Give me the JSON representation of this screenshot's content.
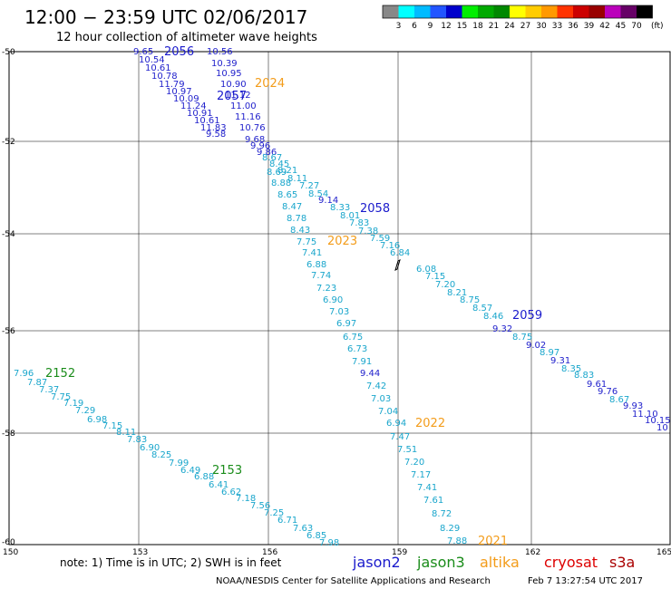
{
  "header": {
    "title": "12:00 − 23:59 UTC 02/06/2017",
    "subtitle": "12 hour collection of altimeter wave heights"
  },
  "color_scale": {
    "unit": "(ft)",
    "ticks": [
      "3",
      "6",
      "9",
      "12",
      "15",
      "18",
      "21",
      "24",
      "27",
      "30",
      "33",
      "36",
      "39",
      "42",
      "45",
      "70"
    ],
    "colors": [
      "#888888",
      "#00ffff",
      "#00bbff",
      "#2255ff",
      "#0000cc",
      "#00ee00",
      "#00aa00",
      "#008800",
      "#ffff00",
      "#ffcc00",
      "#ff9900",
      "#ff3300",
      "#cc0000",
      "#990000",
      "#bb00bb",
      "#660066",
      "#000000"
    ]
  },
  "axes": {
    "lon_ticks": [
      "150",
      "153",
      "156",
      "159",
      "162",
      "165"
    ],
    "lat_ticks": [
      "-50",
      "-52",
      "-54",
      "-56",
      "-58",
      "-60"
    ]
  },
  "passes": [
    {
      "id": "2056",
      "color": "#1a1acc"
    },
    {
      "id": "2057",
      "color": "#1a1acc"
    },
    {
      "id": "2058",
      "color": "#1a1acc"
    },
    {
      "id": "2059",
      "color": "#1a1acc"
    },
    {
      "id": "2024",
      "color": "#f39c1a"
    },
    {
      "id": "2023",
      "color": "#f39c1a"
    },
    {
      "id": "2022",
      "color": "#f39c1a"
    },
    {
      "id": "2021",
      "color": "#f39c1a"
    },
    {
      "id": "2152",
      "color": "#1a8c1a"
    },
    {
      "id": "2153",
      "color": "#1a8c1a"
    }
  ],
  "wave_labels": [
    "9.65",
    "10.54",
    "10.61",
    "10.78",
    "11.79",
    "10.97",
    "10.09",
    "11.24",
    "10.91",
    "10.61",
    "11.83",
    "9.58",
    "10.56",
    "10.39",
    "10.95",
    "10.90",
    "11.12",
    "11.00",
    "11.16",
    "10.76",
    "9.68",
    "9.96",
    "9.86",
    "8.67",
    "8.45",
    "8.69",
    "8.21",
    "8.88",
    "8.11",
    "8.65",
    "7.27",
    "8.47",
    "8.54",
    "9.14",
    "8.78",
    "8.33",
    "8.43",
    "8.01",
    "7.83",
    "7.75",
    "7.38",
    "7.41",
    "7.59",
    "7.16",
    "6.88",
    "6.84",
    "7.74",
    "6.08",
    "7.23",
    "7.15",
    "6.90",
    "7.20",
    "7.03",
    "8.21",
    "6.97",
    "8.75",
    "8.57",
    "6.75",
    "8.46",
    "6.73",
    "9.32",
    "7.91",
    "8.75",
    "9.02",
    "9.44",
    "8.97",
    "7.42",
    "9.31",
    "7.03",
    "8.35",
    "8.83",
    "7.04",
    "9.61",
    "6.94",
    "9.76",
    "7.47",
    "8.67",
    "7.51",
    "9.93",
    "7.20",
    "11.10",
    "7.17",
    "10.15",
    "7.41",
    "10",
    "7.61",
    "8.72",
    "8.29",
    "7.88",
    "7.96",
    "7.87",
    "7.37",
    "7.75",
    "7.19",
    "7.29",
    "6.98",
    "7.15",
    "8.11",
    "7.83",
    "6.90",
    "8.25",
    "7.99",
    "6.49",
    "6.88",
    "6.41",
    "6.62",
    "7.18",
    "7.56",
    "7.25",
    "6.71",
    "7.63",
    "6.85",
    "7.98"
  ],
  "footer": {
    "note": "note: 1) Time is in UTC; 2) SWH is in feet",
    "satellites": [
      {
        "name": "jason2",
        "color": "#1a1acc"
      },
      {
        "name": "jason3",
        "color": "#1a8c1a"
      },
      {
        "name": "altika",
        "color": "#f39c1a"
      },
      {
        "name": "cryosat",
        "color": "#dd0000"
      },
      {
        "name": "s3a",
        "color": "#aa0000"
      }
    ],
    "credit": "NOAA/NESDIS Center for Satellite Applications and Research",
    "timestamp": "Feb  7 13:27:54 UTC 2017"
  }
}
